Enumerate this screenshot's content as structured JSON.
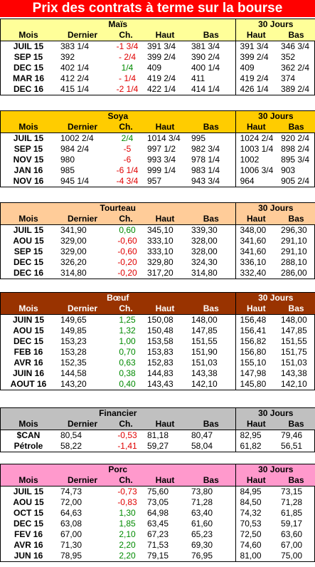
{
  "title": "Prix des contrats à terme sur la bourse",
  "col_labels": {
    "mois": "Mois",
    "dernier": "Dernier",
    "ch": "Ch.",
    "haut": "Haut",
    "bas": "Bas",
    "trente": "30 Jours"
  },
  "sections": [
    {
      "name": "Maïs",
      "color": "#ffff99",
      "headcolor": "#ffff99",
      "rows": [
        [
          "JUIL 15",
          "383 1/4",
          "-1 3/4",
          "391 3/4",
          "381 3/4",
          "391 3/4",
          "346 3/4"
        ],
        [
          "SEP 15",
          "392",
          "- 2/4",
          "399 2/4",
          "390 2/4",
          "399 2/4",
          "352"
        ],
        [
          "DEC 15",
          "402 1/4",
          "1/4",
          "409",
          "400 1/4",
          "409",
          "362 2/4"
        ],
        [
          "MAR 16",
          "412 2/4",
          "- 1/4",
          "419 2/4",
          "411",
          "419 2/4",
          "374"
        ],
        [
          "DEC 16",
          "415 1/4",
          "-2 1/4",
          "422 1/4",
          "414 1/4",
          "426 1/4",
          "389 2/4"
        ]
      ]
    },
    {
      "name": "Soya",
      "color": "#ffcc00",
      "headcolor": "#ffcc00",
      "rows": [
        [
          "JUIL 15",
          "1002 2/4",
          "2/4",
          "1014 3/4",
          "995",
          "1024 2/4",
          "920 2/4"
        ],
        [
          "SEP 15",
          "984 2/4",
          "-5",
          "997 1/2",
          "982 3/4",
          "1003 1/4",
          "898 2/4"
        ],
        [
          "NOV 15",
          "980",
          "-6",
          "993 3/4",
          "978 1/4",
          "1002",
          "895 3/4"
        ],
        [
          "JAN 16",
          "985",
          "-6 1/4",
          "999 1/4",
          "983 1/4",
          "1006 3/4",
          "903"
        ],
        [
          "NOV 16",
          "945 1/4",
          "-4 3/4",
          "957",
          "943 3/4",
          "964",
          "905 2/4"
        ]
      ]
    },
    {
      "name": "Tourteau",
      "color": "#ffcc99",
      "headcolor": "#ffcc99",
      "rows": [
        [
          "JUIL 15",
          "341,90",
          "0,60",
          "345,10",
          "339,30",
          "348,00",
          "296,30"
        ],
        [
          "AOU 15",
          "329,00",
          "-0,60",
          "333,10",
          "328,00",
          "341,60",
          "291,10"
        ],
        [
          "SEP 15",
          "329,00",
          "-0,60",
          "333,10",
          "328,00",
          "341,60",
          "291,10"
        ],
        [
          "DEC 15",
          "326,20",
          "-0,20",
          "329,80",
          "324,30",
          "336,10",
          "288,10"
        ],
        [
          "DEC 16",
          "314,80",
          "-0,20",
          "317,20",
          "314,80",
          "332,40",
          "286,00"
        ]
      ]
    },
    {
      "name": "Bœuf",
      "color": "#993300",
      "headcolor": "#993300",
      "rows": [
        [
          "JUIN 15",
          "149,65",
          "1,25",
          "150,08",
          "148,00",
          "156,48",
          "148,00"
        ],
        [
          "AOU 15",
          "149,85",
          "1,32",
          "150,48",
          "147,85",
          "156,41",
          "147,85"
        ],
        [
          "DEC 15",
          "153,23",
          "1,00",
          "153,58",
          "151,55",
          "156,82",
          "151,55"
        ],
        [
          "FEB 16",
          "153,28",
          "0,70",
          "153,83",
          "151,90",
          "156,80",
          "151,75"
        ],
        [
          "AVR 16",
          "152,35",
          "0,63",
          "152,83",
          "151,03",
          "155,10",
          "151,03"
        ],
        [
          "JUIN 16",
          "144,58",
          "0,38",
          "144,83",
          "143,38",
          "147,98",
          "143,38"
        ],
        [
          "AOUT 16",
          "143,20",
          "0,40",
          "143,43",
          "142,10",
          "145,80",
          "142,10"
        ]
      ]
    },
    {
      "name": "Financier",
      "color": "#c0c0c0",
      "headcolor": "#c0c0c0",
      "rows": [
        [
          "$CAN",
          "80,54",
          "-0,53",
          "81,18",
          "80,47",
          "82,95",
          "79,46"
        ],
        [
          "Pétrole",
          "58,22",
          "-1,41",
          "59,27",
          "58,04",
          "61,82",
          "56,51"
        ]
      ]
    },
    {
      "name": "Porc",
      "color": "#ff99cc",
      "headcolor": "#ff99cc",
      "rows": [
        [
          "JUIL 15",
          "74,73",
          "-0,73",
          "75,60",
          "73,80",
          "84,95",
          "73,15"
        ],
        [
          "AOU 15",
          "72,00",
          "-0,83",
          "73,05",
          "71,28",
          "84,50",
          "71,28"
        ],
        [
          "OCT 15",
          "64,63",
          "1,30",
          "64,98",
          "63,40",
          "74,32",
          "61,85"
        ],
        [
          "DEC 15",
          "63,08",
          "1,85",
          "63,45",
          "61,60",
          "70,53",
          "59,17"
        ],
        [
          "FEV 16",
          "67,00",
          "2,10",
          "67,23",
          "65,23",
          "72,50",
          "63,60"
        ],
        [
          "AVR 16",
          "71,30",
          "2,20",
          "71,53",
          "69,30",
          "74,60",
          "67,00"
        ],
        [
          "JUN 16",
          "78,95",
          "2,20",
          "79,15",
          "76,95",
          "81,00",
          "75,00"
        ]
      ]
    }
  ]
}
